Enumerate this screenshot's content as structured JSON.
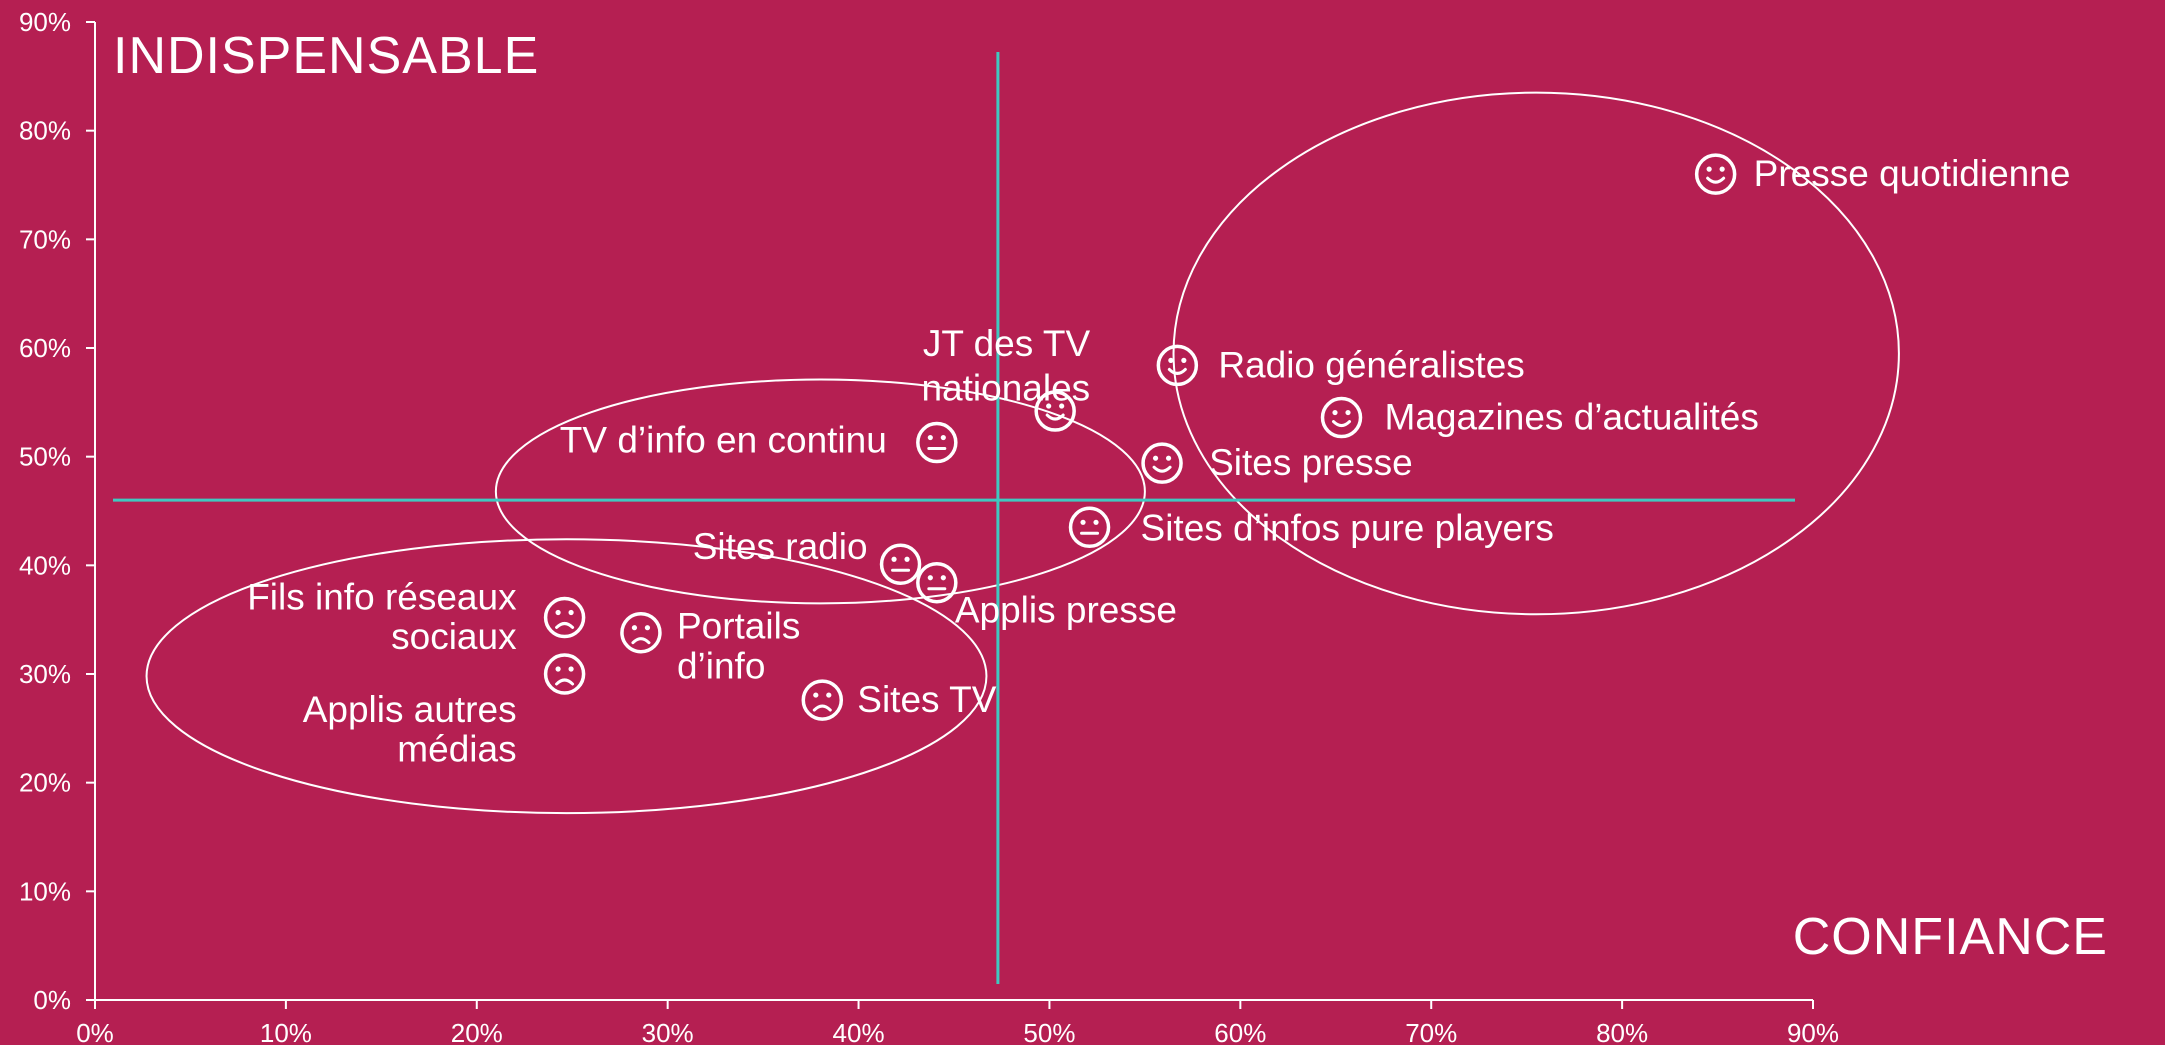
{
  "chart_data": {
    "type": "scatter",
    "xlabel": "CONFIANCE",
    "ylabel": "INDISPENSABLE",
    "xlim": [
      0,
      90
    ],
    "ylim": [
      0,
      90
    ],
    "x_ticks": [
      "0%",
      "10%",
      "20%",
      "30%",
      "40%",
      "50%",
      "60%",
      "70%",
      "80%",
      "90%"
    ],
    "y_ticks": [
      "0%",
      "10%",
      "20%",
      "30%",
      "40%",
      "50%",
      "60%",
      "70%",
      "80%",
      "90%"
    ],
    "reference_lines": {
      "x": 47.3,
      "y": 46
    },
    "colors": {
      "background": "#b51f52",
      "axis": "#ffffff",
      "reference": "#40c8c0",
      "text": "#ffffff"
    },
    "points": [
      {
        "label": [
          "Presse quotidienne"
        ],
        "x": 84.9,
        "y": 76,
        "icon": "smile-icon"
      },
      {
        "label": [
          "JT des TV",
          "nationales"
        ],
        "x": 50.3,
        "y": 54.2,
        "icon": "smile-icon"
      },
      {
        "label": [
          "Radio généralistes"
        ],
        "x": 56.7,
        "y": 58.4,
        "icon": "smile-icon"
      },
      {
        "label": [
          "Magazines d’actualités"
        ],
        "x": 65.3,
        "y": 53.6,
        "icon": "smile-icon"
      },
      {
        "label": [
          "Sites presse"
        ],
        "x": 55.9,
        "y": 49.4,
        "icon": "smile-icon"
      },
      {
        "label": [
          "TV d’info  en continu"
        ],
        "x": 44.1,
        "y": 51.3,
        "icon": "neutral-icon"
      },
      {
        "label": [
          "Sites d’infos pure players"
        ],
        "x": 52.1,
        "y": 43.5,
        "icon": "neutral-icon"
      },
      {
        "label": [
          "Sites radio"
        ],
        "x": 42.2,
        "y": 40.1,
        "icon": "neutral-icon"
      },
      {
        "label": [
          "Applis presse"
        ],
        "x": 44.1,
        "y": 38.4,
        "icon": "neutral-icon"
      },
      {
        "label": [
          "Fils info réseaux",
          "sociaux"
        ],
        "x": 24.6,
        "y": 35.2,
        "icon": "sad-icon"
      },
      {
        "label": [
          "Applis autres",
          "médias"
        ],
        "x": 24.6,
        "y": 30,
        "icon": "sad-icon"
      },
      {
        "label": [
          "Portails",
          "d’info"
        ],
        "x": 28.6,
        "y": 33.8,
        "icon": "sad-icon"
      },
      {
        "label": [
          "Sites TV"
        ],
        "x": 38.1,
        "y": 27.6,
        "icon": "sad-icon"
      }
    ],
    "groups": [
      {
        "name": "positive",
        "center": [
          75.5,
          59.5
        ],
        "radius": [
          19,
          24
        ]
      },
      {
        "name": "neutral",
        "center": [
          38,
          46.8
        ],
        "radius": [
          17,
          10.3
        ]
      },
      {
        "name": "negative",
        "center": [
          24.7,
          29.8
        ],
        "radius": [
          22,
          12.6
        ]
      }
    ]
  }
}
